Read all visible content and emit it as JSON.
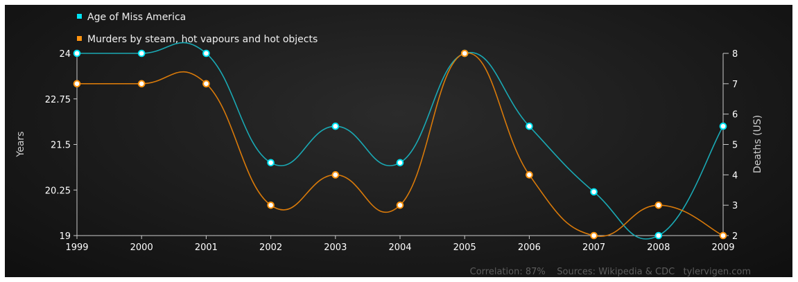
{
  "chart_data": {
    "type": "line",
    "x": [
      1999,
      2000,
      2001,
      2002,
      2003,
      2004,
      2005,
      2006,
      2007,
      2008,
      2009
    ],
    "series": [
      {
        "name": "Age of Miss America",
        "axis": "left",
        "color": "#1aa9b4",
        "marker_color": "#00e5f5",
        "values": [
          24,
          24,
          24,
          21,
          22,
          21,
          24,
          22,
          20.2,
          19,
          22
        ]
      },
      {
        "name": "Murders by steam, hot vapours and hot objects",
        "axis": "right",
        "color": "#d97a0a",
        "marker_color": "#ff9410",
        "values": [
          7,
          7,
          7,
          3,
          4,
          3,
          8,
          4,
          2,
          3,
          2
        ]
      }
    ],
    "ylabel": "Years",
    "ylabel_right": "Deaths (US)",
    "ylim": [
      19,
      24
    ],
    "ylim_right": [
      2,
      8
    ],
    "y_ticks": [
      "19",
      "20.25",
      "21.5",
      "22.75",
      "24"
    ],
    "y_ticks_right": [
      "2",
      "3",
      "4",
      "5",
      "6",
      "7",
      "8"
    ],
    "x_ticks": [
      "1999",
      "2000",
      "2001",
      "2002",
      "2003",
      "2004",
      "2005",
      "2006",
      "2007",
      "2008",
      "2009"
    ],
    "legend_position": "top-left",
    "grid": false,
    "footer": "Correlation: 87%    Sources: Wikipedia & CDC   tylervigen.com"
  }
}
